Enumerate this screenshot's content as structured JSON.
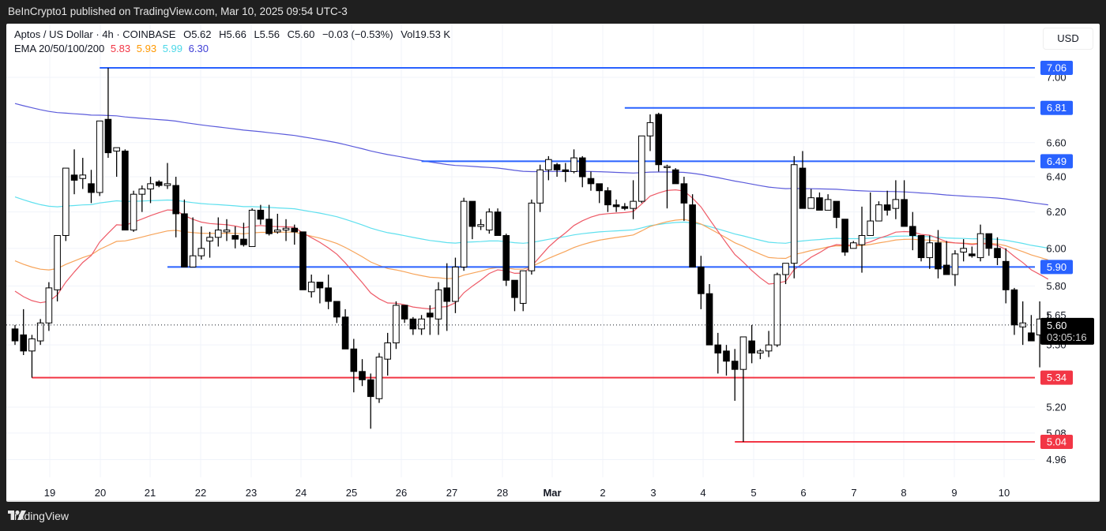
{
  "header": {
    "published": "BeInCrypto1 published on TradingView.com, Mar 10, 2025 09:54 UTC-3"
  },
  "legend": {
    "symbol": "Aptos / US Dollar · 4h · COINBASE",
    "open": "O5.62",
    "high": "H5.66",
    "low": "L5.56",
    "close": "C5.60",
    "change": "−0.03 (−0.53%)",
    "volume": "Vol19.53 K",
    "ema_label": "EMA 20/50/100/200",
    "ema": [
      {
        "value": "5.83",
        "color": "#f23645"
      },
      {
        "value": "5.93",
        "color": "#ff9800"
      },
      {
        "value": "5.99",
        "color": "#4dd8e8"
      },
      {
        "value": "6.30",
        "color": "#3f3fd6"
      }
    ]
  },
  "currency_button": "USD",
  "footer": {
    "brand": "TradingView"
  },
  "chart_data": {
    "type": "candlestick",
    "title": "Aptos / US Dollar · 4h · COINBASE",
    "xlabel": "",
    "ylabel": "USD",
    "ylim": [
      4.9,
      7.12
    ],
    "x_ticks": [
      "19",
      "20",
      "21",
      "22",
      "23",
      "24",
      "25",
      "26",
      "27",
      "28",
      "Mar",
      "2",
      "3",
      "4",
      "5",
      "6",
      "7",
      "8",
      "9",
      "10"
    ],
    "y_ticks": [
      7.0,
      6.6,
      6.4,
      6.2,
      6.0,
      5.8,
      5.65,
      5.5,
      5.2,
      5.08,
      4.96
    ],
    "current_price": {
      "value": "5.60",
      "countdown": "03:05:16"
    },
    "resistance_levels": [
      {
        "value": "7.06",
        "color": "#2962ff",
        "start_index": 10
      },
      {
        "value": "6.81",
        "color": "#2962ff",
        "start_index": 72
      },
      {
        "value": "6.49",
        "color": "#2962ff",
        "start_index": 48
      },
      {
        "value": "5.90",
        "color": "#2962ff",
        "start_index": 18
      }
    ],
    "support_levels": [
      {
        "value": "5.34",
        "color": "#f23645",
        "start_index": 2
      },
      {
        "value": "5.04",
        "color": "#f23645",
        "start_index": 85
      }
    ],
    "candles": [
      [
        5.58,
        5.6,
        5.5,
        5.52
      ],
      [
        5.55,
        5.68,
        5.45,
        5.47
      ],
      [
        5.47,
        5.55,
        5.34,
        5.53
      ],
      [
        5.52,
        5.63,
        5.5,
        5.61
      ],
      [
        5.61,
        5.82,
        5.57,
        5.79
      ],
      [
        5.78,
        6.07,
        5.72,
        6.07
      ],
      [
        6.07,
        6.45,
        6.04,
        6.45
      ],
      [
        6.41,
        6.56,
        6.3,
        6.38
      ],
      [
        6.39,
        6.51,
        6.33,
        6.41
      ],
      [
        6.36,
        6.44,
        6.25,
        6.31
      ],
      [
        6.31,
        6.73,
        6.29,
        6.73
      ],
      [
        6.74,
        7.06,
        6.51,
        6.54
      ],
      [
        6.55,
        6.57,
        6.4,
        6.57
      ],
      [
        6.55,
        6.56,
        6.12,
        6.1
      ],
      [
        6.1,
        6.32,
        6.09,
        6.3
      ],
      [
        6.3,
        6.35,
        6.2,
        6.33
      ],
      [
        6.33,
        6.4,
        6.25,
        6.36
      ],
      [
        6.37,
        6.38,
        6.34,
        6.35
      ],
      [
        6.35,
        6.48,
        6.33,
        6.36
      ],
      [
        6.35,
        6.4,
        6.06,
        6.19
      ],
      [
        6.19,
        6.27,
        5.96,
        5.9
      ],
      [
        5.9,
        6.17,
        5.92,
        5.96
      ],
      [
        5.96,
        6.12,
        5.94,
        6.0
      ],
      [
        6.04,
        6.09,
        5.95,
        6.06
      ],
      [
        6.06,
        6.17,
        6.01,
        6.1
      ],
      [
        6.09,
        6.16,
        6.04,
        6.1
      ],
      [
        6.07,
        6.12,
        6.0,
        6.05
      ],
      [
        6.05,
        6.14,
        6.01,
        6.02
      ],
      [
        6.01,
        6.22,
        6.07,
        6.21
      ],
      [
        6.21,
        6.24,
        6.13,
        6.16
      ],
      [
        6.16,
        6.24,
        6.07,
        6.08
      ],
      [
        6.09,
        6.19,
        6.08,
        6.1
      ],
      [
        6.1,
        6.16,
        6.04,
        6.11
      ],
      [
        6.11,
        6.13,
        6.02,
        6.09
      ],
      [
        6.09,
        6.09,
        5.78,
        5.78
      ],
      [
        5.77,
        5.86,
        5.74,
        5.82
      ],
      [
        5.82,
        5.82,
        5.71,
        5.79
      ],
      [
        5.79,
        5.86,
        5.68,
        5.72
      ],
      [
        5.72,
        5.72,
        5.61,
        5.64
      ],
      [
        5.64,
        5.68,
        5.5,
        5.48
      ],
      [
        5.48,
        5.53,
        5.27,
        5.37
      ],
      [
        5.37,
        5.43,
        5.3,
        5.33
      ],
      [
        5.33,
        5.36,
        5.1,
        5.25
      ],
      [
        5.24,
        5.46,
        5.22,
        5.44
      ],
      [
        5.43,
        5.56,
        5.35,
        5.51
      ],
      [
        5.51,
        5.72,
        5.48,
        5.7
      ],
      [
        5.7,
        5.69,
        5.61,
        5.63
      ],
      [
        5.63,
        5.64,
        5.55,
        5.58
      ],
      [
        5.58,
        5.65,
        5.55,
        5.63
      ],
      [
        5.66,
        5.7,
        5.55,
        5.64
      ],
      [
        5.63,
        5.82,
        5.55,
        5.78
      ],
      [
        5.79,
        5.92,
        5.57,
        5.72
      ],
      [
        5.72,
        5.95,
        5.66,
        5.9
      ],
      [
        5.9,
        6.28,
        5.88,
        6.26
      ],
      [
        6.26,
        6.21,
        6.05,
        6.12
      ],
      [
        6.12,
        6.16,
        6.1,
        6.13
      ],
      [
        6.1,
        6.22,
        6.08,
        6.2
      ],
      [
        6.2,
        6.22,
        6.07,
        6.07
      ],
      [
        6.07,
        6.08,
        5.8,
        5.83
      ],
      [
        5.83,
        5.79,
        5.67,
        5.74
      ],
      [
        5.71,
        5.87,
        5.67,
        5.88
      ],
      [
        5.88,
        6.27,
        5.86,
        6.25
      ],
      [
        6.25,
        6.47,
        6.2,
        6.44
      ],
      [
        6.44,
        6.52,
        6.38,
        6.5
      ],
      [
        6.47,
        6.48,
        6.4,
        6.44
      ],
      [
        6.44,
        6.48,
        6.37,
        6.43
      ],
      [
        6.43,
        6.56,
        6.42,
        6.51
      ],
      [
        6.51,
        6.52,
        6.34,
        6.4
      ],
      [
        6.39,
        6.43,
        6.32,
        6.36
      ],
      [
        6.36,
        6.36,
        6.25,
        6.32
      ],
      [
        6.32,
        6.34,
        6.2,
        6.24
      ],
      [
        6.24,
        6.27,
        6.2,
        6.23
      ],
      [
        6.23,
        6.25,
        6.21,
        6.22
      ],
      [
        6.22,
        6.38,
        6.16,
        6.26
      ],
      [
        6.26,
        6.63,
        6.25,
        6.64
      ],
      [
        6.64,
        6.77,
        6.55,
        6.72
      ],
      [
        6.77,
        6.78,
        6.43,
        6.47
      ],
      [
        6.46,
        6.47,
        6.22,
        6.46
      ],
      [
        6.44,
        6.45,
        6.36,
        6.36
      ],
      [
        6.36,
        6.4,
        6.15,
        6.25
      ],
      [
        6.24,
        6.3,
        5.96,
        5.9
      ],
      [
        5.9,
        5.96,
        5.68,
        5.76
      ],
      [
        5.76,
        5.81,
        5.55,
        5.5
      ],
      [
        5.5,
        5.56,
        5.36,
        5.46
      ],
      [
        5.47,
        5.5,
        5.35,
        5.42
      ],
      [
        5.42,
        5.48,
        5.23,
        5.38
      ],
      [
        5.38,
        5.53,
        5.04,
        5.54
      ],
      [
        5.52,
        5.6,
        5.41,
        5.46
      ],
      [
        5.46,
        5.48,
        5.43,
        5.47
      ],
      [
        5.47,
        5.57,
        5.44,
        5.5
      ],
      [
        5.5,
        5.87,
        5.49,
        5.86
      ],
      [
        5.86,
        5.89,
        5.81,
        5.92
      ],
      [
        5.92,
        6.52,
        5.84,
        6.47
      ],
      [
        6.45,
        6.55,
        6.37,
        6.22
      ],
      [
        6.22,
        6.33,
        6.26,
        6.28
      ],
      [
        6.28,
        6.31,
        6.22,
        6.21
      ],
      [
        6.21,
        6.3,
        6.22,
        6.27
      ],
      [
        6.26,
        6.26,
        6.11,
        6.17
      ],
      [
        6.16,
        6.09,
        5.96,
        5.98
      ],
      [
        6.0,
        6.04,
        6.02,
        6.03
      ],
      [
        6.02,
        6.23,
        5.87,
        6.07
      ],
      [
        6.07,
        6.31,
        6.07,
        6.15
      ],
      [
        6.15,
        6.26,
        6.17,
        6.24
      ],
      [
        6.24,
        6.32,
        6.18,
        6.21
      ],
      [
        6.22,
        6.38,
        6.16,
        6.27
      ],
      [
        6.27,
        6.38,
        6.15,
        6.12
      ],
      [
        6.12,
        6.2,
        5.99,
        6.07
      ],
      [
        6.07,
        6.02,
        5.93,
        5.95
      ],
      [
        5.95,
        6.07,
        5.89,
        6.03
      ],
      [
        6.03,
        6.1,
        5.84,
        5.89
      ],
      [
        5.91,
        6.04,
        5.86,
        5.86
      ],
      [
        5.86,
        5.99,
        5.8,
        5.97
      ],
      [
        5.98,
        6.05,
        5.93,
        6.0
      ],
      [
        5.97,
        6.01,
        5.95,
        5.96
      ],
      [
        5.95,
        6.13,
        5.93,
        6.08
      ],
      [
        6.08,
        6.08,
        5.96,
        6.0
      ],
      [
        6.0,
        6.06,
        5.91,
        5.95
      ],
      [
        5.93,
        6.0,
        5.71,
        5.78
      ],
      [
        5.78,
        5.79,
        5.55,
        5.6
      ],
      [
        5.59,
        5.72,
        5.5,
        5.61
      ],
      [
        5.56,
        5.65,
        5.52,
        5.52
      ],
      [
        5.55,
        5.72,
        5.39,
        5.63
      ],
      [
        5.62,
        5.66,
        5.56,
        5.6
      ]
    ]
  }
}
